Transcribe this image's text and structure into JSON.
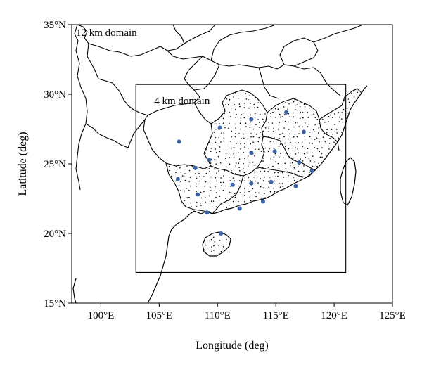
{
  "chart_data": {
    "type": "scatter",
    "xlabel": "Longitude (deg)",
    "ylabel": "Latitude (deg)",
    "xlim": [
      97.5,
      125
    ],
    "ylim": [
      15,
      35
    ],
    "x_ticks": [
      100,
      105,
      110,
      115,
      120,
      125
    ],
    "y_ticks": [
      15,
      20,
      25,
      30,
      35
    ],
    "x_tick_labels": [
      "100°E",
      "105°E",
      "110°E",
      "115°E",
      "120°E",
      "125°E"
    ],
    "y_tick_labels": [
      "15°N",
      "20°N",
      "25°N",
      "30°N",
      "35°N"
    ],
    "domains": [
      {
        "label": "12 km domain",
        "lon_range": [
          97.5,
          125
        ],
        "lat_range": [
          15,
          35
        ]
      },
      {
        "label": "4 km domain",
        "lon_range": [
          103,
          121
        ],
        "lat_range": [
          17.2,
          30.7
        ]
      }
    ],
    "dot_color": "#3a63a8",
    "stations": [
      {
        "lon": 106.7,
        "lat": 26.6
      },
      {
        "lon": 110.2,
        "lat": 27.6
      },
      {
        "lon": 112.9,
        "lat": 28.2
      },
      {
        "lon": 115.9,
        "lat": 28.7
      },
      {
        "lon": 117.4,
        "lat": 27.3
      },
      {
        "lon": 108.1,
        "lat": 24.7
      },
      {
        "lon": 109.3,
        "lat": 25.3
      },
      {
        "lon": 112.9,
        "lat": 25.8
      },
      {
        "lon": 114.9,
        "lat": 25.9
      },
      {
        "lon": 117.0,
        "lat": 25.1
      },
      {
        "lon": 106.6,
        "lat": 23.9
      },
      {
        "lon": 111.3,
        "lat": 23.5
      },
      {
        "lon": 112.9,
        "lat": 23.6
      },
      {
        "lon": 114.6,
        "lat": 23.7
      },
      {
        "lon": 118.1,
        "lat": 24.5
      },
      {
        "lon": 108.3,
        "lat": 22.8
      },
      {
        "lon": 116.7,
        "lat": 23.4
      },
      {
        "lon": 109.1,
        "lat": 21.5
      },
      {
        "lon": 111.9,
        "lat": 21.8
      },
      {
        "lon": 113.9,
        "lat": 22.3
      },
      {
        "lon": 110.3,
        "lat": 20.0
      }
    ]
  }
}
